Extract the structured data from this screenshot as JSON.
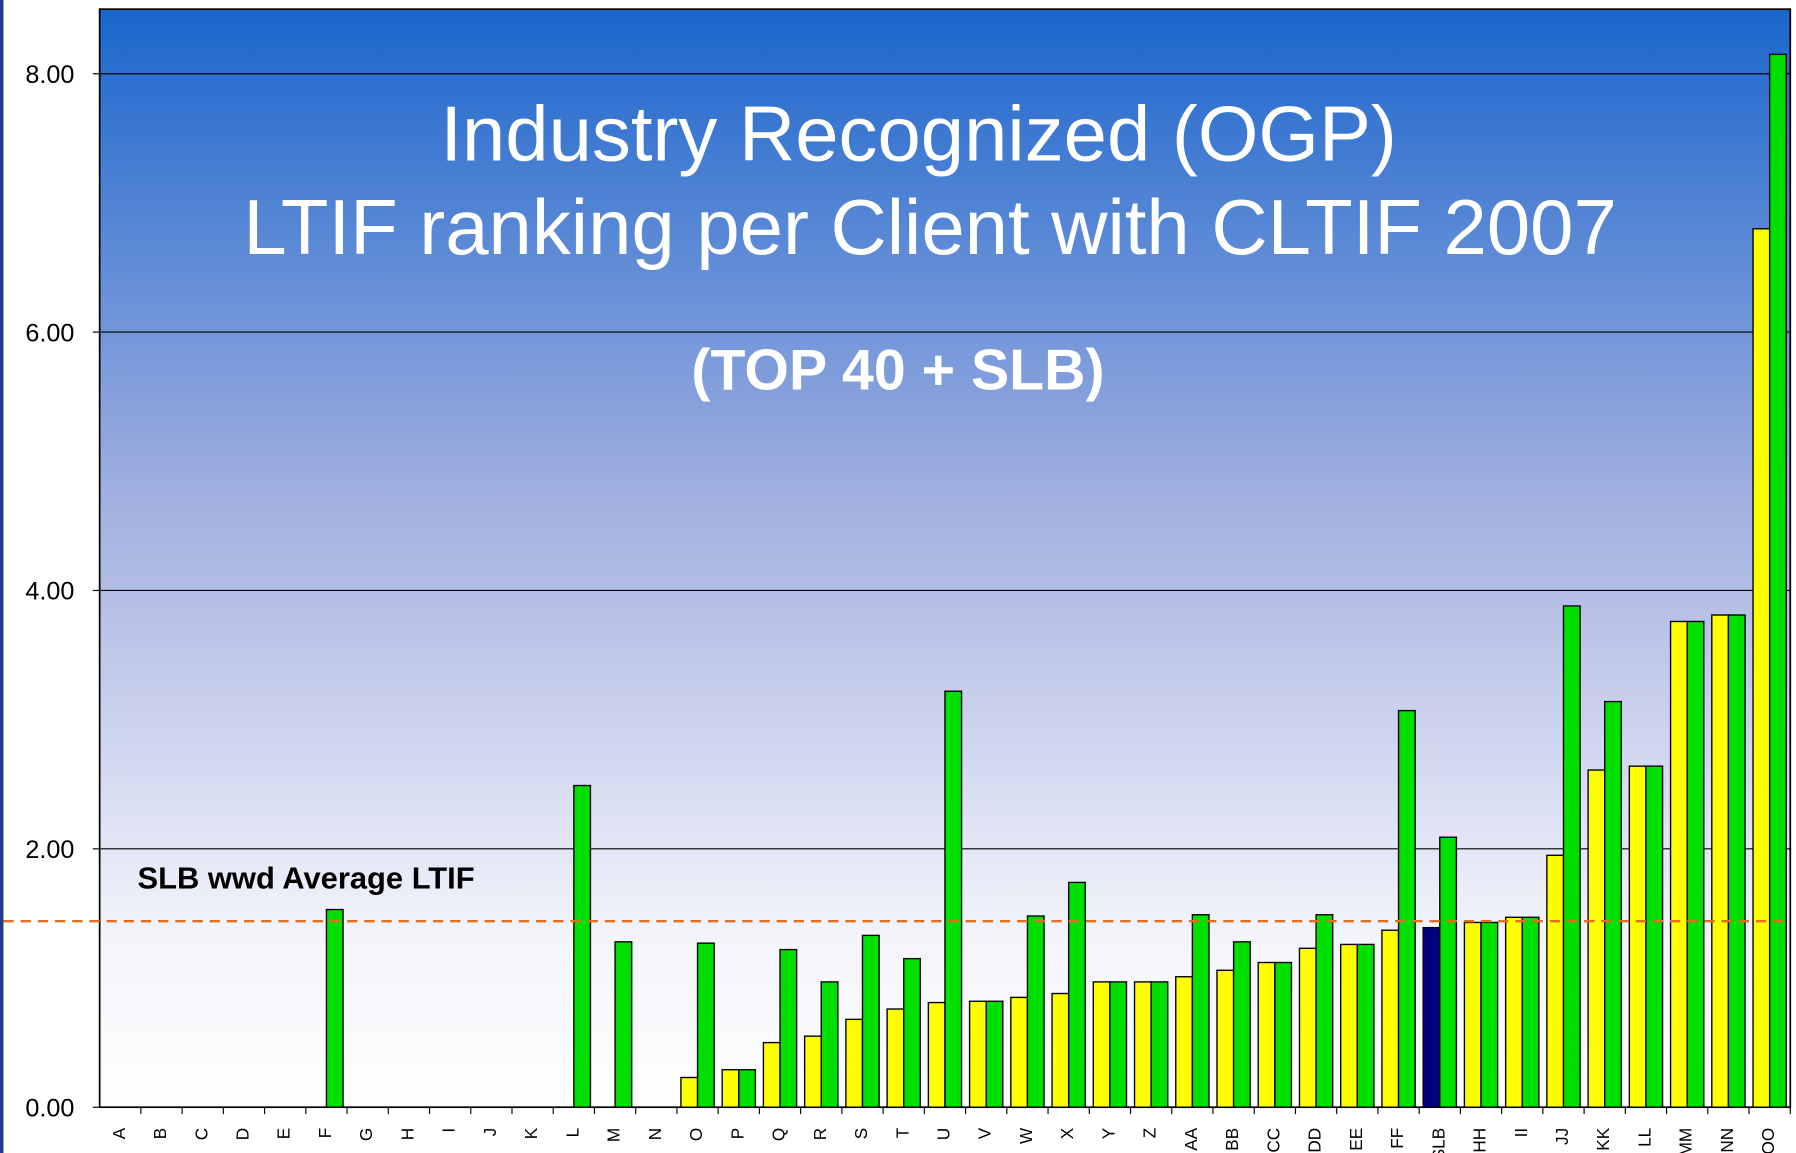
{
  "chart_data": {
    "type": "bar",
    "title": "Industry Recognized (OGP)",
    "title_line2": "LTIF ranking per Client with CLTIF 2007",
    "subtitle": "(TOP 40 + SLB)",
    "categories": [
      "A",
      "B",
      "C",
      "D",
      "E",
      "F",
      "G",
      "H",
      "I",
      "J",
      "K",
      "L",
      "M",
      "N",
      "O",
      "P",
      "Q",
      "R",
      "S",
      "T",
      "U",
      "V",
      "W",
      "X",
      "Y",
      "Z",
      "AA",
      "BB",
      "CC",
      "DD",
      "EE",
      "FF",
      "SLB",
      "HH",
      "II",
      "JJ",
      "KK",
      "LL",
      "MM",
      "NN",
      "OO"
    ],
    "series": [
      {
        "color": "#ffff00",
        "values": [
          null,
          null,
          null,
          null,
          null,
          null,
          null,
          null,
          null,
          null,
          null,
          null,
          null,
          null,
          0.23,
          0.29,
          0.5,
          0.55,
          0.68,
          0.76,
          0.81,
          0.82,
          0.85,
          0.88,
          0.97,
          0.97,
          1.01,
          1.06,
          1.12,
          1.23,
          1.26,
          1.37,
          1.39,
          1.43,
          1.47,
          1.95,
          2.61,
          2.64,
          3.76,
          3.81,
          6.8
        ]
      },
      {
        "color": "#00e000",
        "values": [
          null,
          null,
          null,
          null,
          null,
          1.53,
          null,
          null,
          null,
          null,
          null,
          2.49,
          1.28,
          null,
          1.27,
          0.29,
          1.22,
          0.97,
          1.33,
          1.15,
          3.22,
          0.82,
          1.48,
          1.74,
          0.97,
          0.97,
          1.49,
          1.28,
          1.12,
          1.49,
          1.26,
          3.07,
          2.09,
          1.43,
          1.47,
          3.88,
          3.14,
          2.64,
          3.76,
          3.81,
          8.15
        ]
      }
    ],
    "highlight": {
      "category": "SLB",
      "color": "#000080"
    },
    "average": {
      "label": "SLB wwd Average LTIF",
      "value": 1.44,
      "color": "#e07020"
    },
    "ylim": [
      0,
      8.5
    ],
    "yticks": [
      {
        "value": 0,
        "label": "0.00"
      },
      {
        "value": 2,
        "label": "2.00"
      },
      {
        "value": 4,
        "label": "4.00"
      },
      {
        "value": 6,
        "label": "6.00"
      },
      {
        "value": 8,
        "label": "8.00"
      }
    ],
    "grid": true
  }
}
